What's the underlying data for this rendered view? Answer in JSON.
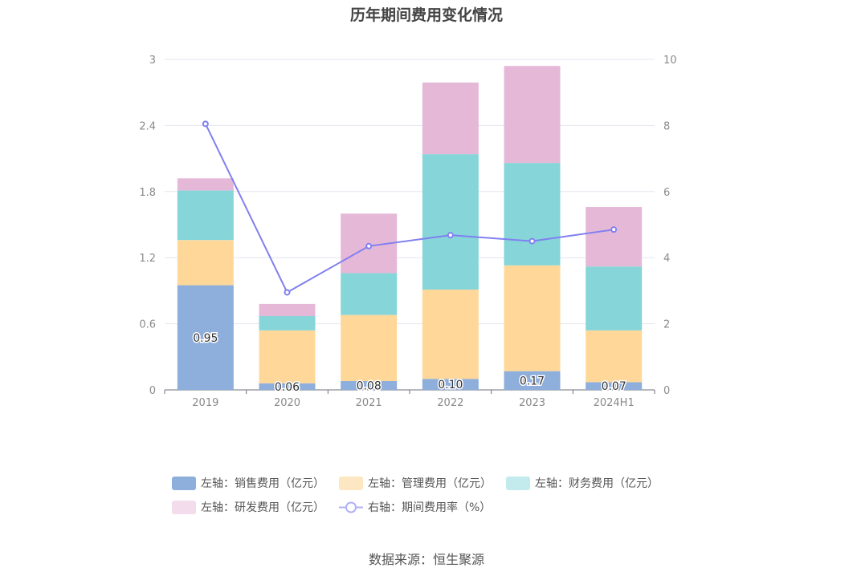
{
  "title": "历年期间费用变化情况",
  "source": "数据来源：恒生聚源",
  "chart_data": {
    "type": "bar",
    "stacked": true,
    "title": "历年期间费用变化情况",
    "categories": [
      "2019",
      "2020",
      "2021",
      "2022",
      "2023",
      "2024H1"
    ],
    "left_axis": {
      "ticks": [
        "0",
        "0.6",
        "1.2",
        "1.8",
        "2.4",
        "3"
      ],
      "ylim": [
        0,
        3
      ]
    },
    "right_axis": {
      "ticks": [
        "0",
        "2",
        "4",
        "6",
        "8",
        "10"
      ],
      "ylim": [
        0,
        10
      ]
    },
    "series": [
      {
        "name": "左轴：销售费用（亿元）",
        "axis": "left",
        "color": "#8eaedc",
        "values": [
          0.95,
          0.06,
          0.08,
          0.1,
          0.17,
          0.07
        ],
        "labels": [
          "0.95",
          "0.06",
          "0.08",
          "0.10",
          "0.17",
          "0.07"
        ]
      },
      {
        "name": "左轴：管理费用（亿元）",
        "axis": "left",
        "color": "#ffd899",
        "values": [
          0.41,
          0.48,
          0.6,
          0.81,
          0.96,
          0.47
        ]
      },
      {
        "name": "左轴：财务费用（亿元）",
        "axis": "left",
        "color": "#86d5d9",
        "values": [
          0.45,
          0.13,
          0.38,
          1.23,
          0.93,
          0.58
        ]
      },
      {
        "name": "左轴：研发费用（亿元）",
        "axis": "left",
        "color": "#e6b8d8",
        "values": [
          0.11,
          0.11,
          0.54,
          0.65,
          0.88,
          0.54
        ]
      },
      {
        "name": "右轴：期间费用率（%）",
        "axis": "right",
        "type": "line",
        "color": "#8080f0",
        "values": [
          8.05,
          2.95,
          4.35,
          4.68,
          4.5,
          4.85
        ]
      }
    ],
    "legend_colors": [
      "#8eaedc",
      "#fde7c2",
      "#c3ebed",
      "#f3dcec",
      "#b0b0f7"
    ]
  }
}
